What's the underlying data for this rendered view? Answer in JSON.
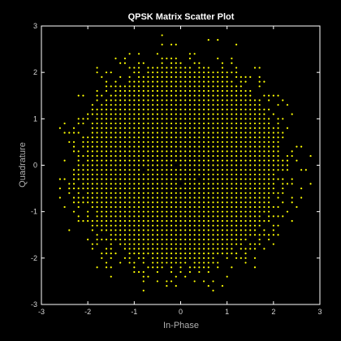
{
  "chart_data": {
    "type": "scatter",
    "title": "QPSK Matrix Scatter Plot",
    "xlabel": "In-Phase",
    "ylabel": "Quadrature",
    "xlim": [
      -3,
      3
    ],
    "ylim": [
      -3,
      3
    ],
    "xticks": [
      -3,
      -2,
      -1,
      0,
      1,
      2,
      3
    ],
    "yticks": [
      -3,
      -2,
      -1,
      0,
      1,
      2,
      3
    ],
    "grid": false,
    "point_color": "#ffff00",
    "background_color": "#000000",
    "axis_color": "#ffffff",
    "point_grid_spacing": 0.1,
    "point_cloud": {
      "description_center": [
        0,
        0
      ],
      "dense_radius": 2.1,
      "sparse_radius": 2.95
    }
  }
}
